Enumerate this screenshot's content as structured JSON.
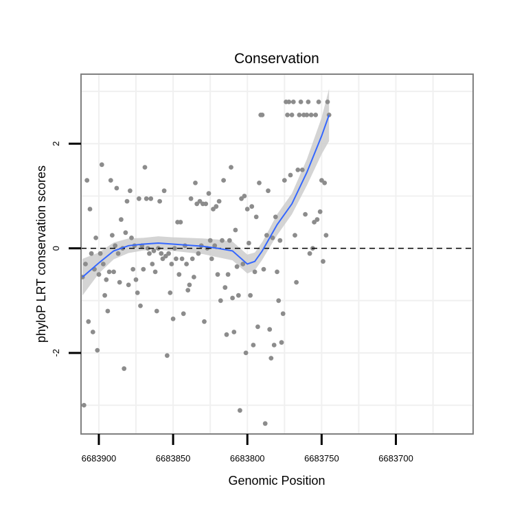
{
  "chart_data": {
    "type": "scatter",
    "title": "Conservation",
    "xlabel": "Genomic Position",
    "ylabel": "phyloP LRT conservation scores",
    "x_reversed": true,
    "xlim": [
      6683912,
      6683648
    ],
    "ylim": [
      -3.55,
      3.33
    ],
    "x_ticks": [
      6683900,
      6683850,
      6683800,
      6683750,
      6683700
    ],
    "x_tick_labels": [
      "6683900",
      "6683850",
      "6683800",
      "6683750",
      "6683700"
    ],
    "y_ticks": [
      -2,
      0,
      2
    ],
    "y_tick_labels": [
      "-2",
      "0",
      "2"
    ],
    "reference_line": {
      "y": 0,
      "style": "dashed",
      "color": "#000000"
    },
    "grid": true,
    "colors": {
      "points": "#8c8c8c",
      "smooth_line": "#3366ff",
      "confidence_band": "#cccccc",
      "panel_border": "#7f7f7f",
      "grid": "#f0f0f0"
    },
    "points": [
      [
        6683911,
        -0.55
      ],
      [
        6683910,
        -3.0
      ],
      [
        6683909,
        -0.3
      ],
      [
        6683908,
        1.3
      ],
      [
        6683907,
        -1.4
      ],
      [
        6683906,
        0.75
      ],
      [
        6683905,
        -0.1
      ],
      [
        6683904,
        -1.6
      ],
      [
        6683903,
        -0.4
      ],
      [
        6683902,
        0.2
      ],
      [
        6683901,
        -1.95
      ],
      [
        6683900,
        -0.5
      ],
      [
        6683899,
        -0.1
      ],
      [
        6683898,
        1.6
      ],
      [
        6683897,
        -0.3
      ],
      [
        6683896,
        -0.9
      ],
      [
        6683895,
        -0.6
      ],
      [
        6683894,
        -1.2
      ],
      [
        6683893,
        -0.45
      ],
      [
        6683892,
        1.3
      ],
      [
        6683891,
        0.25
      ],
      [
        6683890,
        -0.45
      ],
      [
        6683889,
        0.05
      ],
      [
        6683888,
        1.15
      ],
      [
        6683887,
        -0.1
      ],
      [
        6683886,
        -0.65
      ],
      [
        6683885,
        0.55
      ],
      [
        6683884,
        0.0
      ],
      [
        6683883,
        -2.3
      ],
      [
        6683882,
        0.3
      ],
      [
        6683881,
        0.9
      ],
      [
        6683880,
        -0.7
      ],
      [
        6683879,
        1.1
      ],
      [
        6683878,
        0.2
      ],
      [
        6683877,
        -0.4
      ],
      [
        6683876,
        0.05
      ],
      [
        6683875,
        -0.6
      ],
      [
        6683874,
        -0.85
      ],
      [
        6683873,
        0.95
      ],
      [
        6683872,
        -1.1
      ],
      [
        6683871,
        0.05
      ],
      [
        6683870,
        -0.4
      ],
      [
        6683869,
        1.55
      ],
      [
        6683868,
        0.95
      ],
      [
        6683867,
        0.0
      ],
      [
        6683866,
        -0.1
      ],
      [
        6683865,
        0.95
      ],
      [
        6683864,
        -0.3
      ],
      [
        6683863,
        -0.05
      ],
      [
        6683862,
        -0.45
      ],
      [
        6683861,
        -1.2
      ],
      [
        6683860,
        0.0
      ],
      [
        6683859,
        0.9
      ],
      [
        6683858,
        -0.1
      ],
      [
        6683857,
        -0.2
      ],
      [
        6683856,
        1.1
      ],
      [
        6683855,
        -0.15
      ],
      [
        6683854,
        -2.05
      ],
      [
        6683853,
        -0.1
      ],
      [
        6683852,
        -0.85
      ],
      [
        6683851,
        -0.3
      ],
      [
        6683850,
        -1.35
      ],
      [
        6683849,
        0.0
      ],
      [
        6683848,
        -0.2
      ],
      [
        6683847,
        0.5
      ],
      [
        6683846,
        -0.5
      ],
      [
        6683845,
        0.5
      ],
      [
        6683844,
        -0.2
      ],
      [
        6683843,
        -1.25
      ],
      [
        6683842,
        0.05
      ],
      [
        6683841,
        -0.3
      ],
      [
        6683840,
        -0.8
      ],
      [
        6683839,
        -0.7
      ],
      [
        6683838,
        0.95
      ],
      [
        6683837,
        -0.2
      ],
      [
        6683836,
        -0.55
      ],
      [
        6683835,
        1.25
      ],
      [
        6683834,
        0.85
      ],
      [
        6683833,
        -0.1
      ],
      [
        6683832,
        0.9
      ],
      [
        6683831,
        0.05
      ],
      [
        6683830,
        0.85
      ],
      [
        6683829,
        -1.4
      ],
      [
        6683828,
        0.85
      ],
      [
        6683827,
        0.0
      ],
      [
        6683826,
        1.05
      ],
      [
        6683825,
        0.15
      ],
      [
        6683824,
        -0.2
      ],
      [
        6683823,
        0.75
      ],
      [
        6683822,
        0.05
      ],
      [
        6683821,
        0.8
      ],
      [
        6683820,
        -0.5
      ],
      [
        6683819,
        0.9
      ],
      [
        6683818,
        -1.0
      ],
      [
        6683817,
        0.15
      ],
      [
        6683816,
        1.3
      ],
      [
        6683815,
        -0.75
      ],
      [
        6683814,
        -1.65
      ],
      [
        6683813,
        -0.5
      ],
      [
        6683812,
        0.15
      ],
      [
        6683811,
        1.55
      ],
      [
        6683810,
        -0.95
      ],
      [
        6683809,
        -1.6
      ],
      [
        6683808,
        0.35
      ],
      [
        6683807,
        -0.35
      ],
      [
        6683806,
        -0.9
      ],
      [
        6683805,
        -3.1
      ],
      [
        6683804,
        0.95
      ],
      [
        6683803,
        -0.3
      ],
      [
        6683802,
        1.0
      ],
      [
        6683801,
        -2.0
      ],
      [
        6683800,
        0.75
      ],
      [
        6683799,
        0.1
      ],
      [
        6683798,
        -0.9
      ],
      [
        6683797,
        0.8
      ],
      [
        6683796,
        -1.85
      ],
      [
        6683795,
        -0.45
      ],
      [
        6683794,
        0.6
      ],
      [
        6683793,
        -1.5
      ],
      [
        6683792,
        1.25
      ],
      [
        6683791,
        2.55
      ],
      [
        6683790,
        2.55
      ],
      [
        6683789,
        -0.4
      ],
      [
        6683788,
        -3.35
      ],
      [
        6683787,
        0.25
      ],
      [
        6683786,
        1.1
      ],
      [
        6683785,
        -1.55
      ],
      [
        6683784,
        -2.1
      ],
      [
        6683783,
        0.2
      ],
      [
        6683782,
        -1.85
      ],
      [
        6683781,
        0.6
      ],
      [
        6683780,
        -0.45
      ],
      [
        6683779,
        -1.0
      ],
      [
        6683778,
        0.15
      ],
      [
        6683777,
        -1.8
      ],
      [
        6683776,
        -1.25
      ],
      [
        6683775,
        1.3
      ],
      [
        6683774,
        2.8
      ],
      [
        6683773,
        2.55
      ],
      [
        6683772,
        2.8
      ],
      [
        6683771,
        1.4
      ],
      [
        6683770,
        2.55
      ],
      [
        6683769,
        2.8
      ],
      [
        6683768,
        0.25
      ],
      [
        6683767,
        -0.65
      ],
      [
        6683766,
        1.5
      ],
      [
        6683765,
        2.55
      ],
      [
        6683764,
        2.8
      ],
      [
        6683763,
        1.5
      ],
      [
        6683762,
        2.55
      ],
      [
        6683761,
        0.65
      ],
      [
        6683760,
        2.55
      ],
      [
        6683759,
        2.8
      ],
      [
        6683758,
        -0.1
      ],
      [
        6683757,
        2.55
      ],
      [
        6683756,
        0.0
      ],
      [
        6683755,
        0.5
      ],
      [
        6683754,
        2.55
      ],
      [
        6683753,
        0.55
      ],
      [
        6683752,
        2.8
      ],
      [
        6683751,
        0.7
      ],
      [
        6683750,
        1.3
      ],
      [
        6683749,
        -0.25
      ],
      [
        6683748,
        1.25
      ],
      [
        6683747,
        0.25
      ],
      [
        6683746,
        2.8
      ],
      [
        6683745,
        2.55
      ]
    ],
    "smooth_line": {
      "x": [
        6683911,
        6683900,
        6683890,
        6683880,
        6683870,
        6683860,
        6683850,
        6683840,
        6683830,
        6683820,
        6683810,
        6683800,
        6683795,
        6683790,
        6683785,
        6683780,
        6683770,
        6683760,
        6683750,
        6683745
      ],
      "y": [
        -0.55,
        -0.28,
        -0.05,
        0.05,
        0.08,
        0.1,
        0.08,
        0.06,
        0.04,
        0.0,
        -0.05,
        -0.3,
        -0.25,
        -0.05,
        0.2,
        0.45,
        0.85,
        1.45,
        2.15,
        2.55
      ],
      "ci_halfwidth": [
        0.35,
        0.2,
        0.16,
        0.14,
        0.12,
        0.13,
        0.13,
        0.14,
        0.15,
        0.17,
        0.18,
        0.18,
        0.17,
        0.17,
        0.18,
        0.2,
        0.2,
        0.25,
        0.35,
        0.5
      ]
    }
  }
}
